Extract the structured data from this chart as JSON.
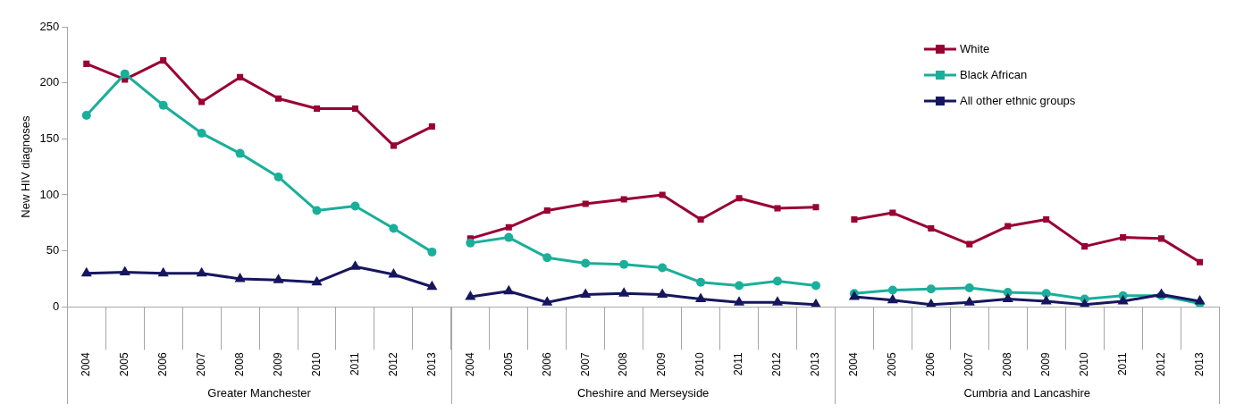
{
  "chart_data": {
    "type": "line",
    "ylabel": "New HIV diagnoses",
    "categories": [
      "2004",
      "2005",
      "2006",
      "2007",
      "2008",
      "2009",
      "2010",
      "2011",
      "2012",
      "2013",
      "2004",
      "2005",
      "2006",
      "2007",
      "2008",
      "2009",
      "2010",
      "2011",
      "2012",
      "2013",
      "2004",
      "2005",
      "2006",
      "2007",
      "2008",
      "2009",
      "2010",
      "2011",
      "2012",
      "2013"
    ],
    "annotations": [
      "Greater Manchester",
      "Cheshire and Merseyside",
      "Cumbria and Lancashire"
    ],
    "series": [
      {
        "name": "White",
        "color": "#990033",
        "marker": "square",
        "values": [
          217,
          203,
          220,
          183,
          205,
          186,
          177,
          177,
          144,
          161,
          61,
          71,
          86,
          92,
          96,
          100,
          78,
          97,
          88,
          89,
          78,
          84,
          70,
          56,
          72,
          78,
          54,
          62,
          61,
          40
        ]
      },
      {
        "name": "Black African",
        "color": "#1aaf9a",
        "marker": "circle",
        "values": [
          171,
          208,
          180,
          155,
          137,
          116,
          86,
          90,
          70,
          49,
          57,
          62,
          44,
          39,
          38,
          35,
          22,
          19,
          23,
          19,
          12,
          15,
          16,
          17,
          13,
          12,
          7,
          10,
          10,
          3
        ]
      },
      {
        "name": "All other ethnic groups",
        "color": "#16165f",
        "marker": "triangle",
        "values": [
          30,
          31,
          30,
          30,
          25,
          24,
          22,
          36,
          29,
          18,
          9,
          14,
          4,
          11,
          12,
          11,
          7,
          4,
          4,
          2,
          9,
          6,
          2,
          4,
          7,
          5,
          2,
          5,
          11,
          5
        ]
      }
    ],
    "ylim": [
      0,
      250
    ],
    "yticks": [
      0,
      50,
      100,
      150,
      200,
      250
    ],
    "grid": false,
    "legend": "top right",
    "line_style": "solid"
  }
}
